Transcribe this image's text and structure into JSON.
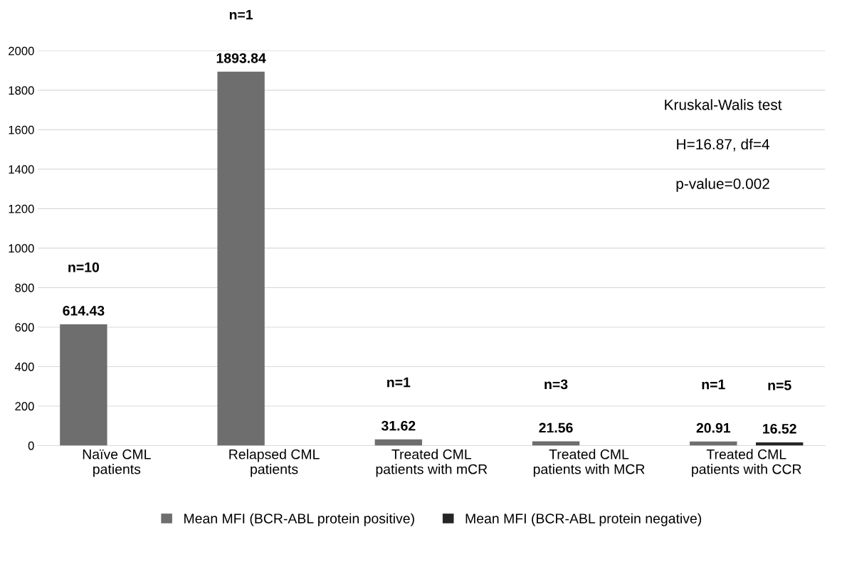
{
  "chart_data": {
    "type": "bar",
    "categories": [
      "Naïve CML\npatients",
      "Relapsed CML\npatients",
      "Treated CML\npatients with mCR",
      "Treated CML\npatients with MCR",
      "Treated CML\npatients with CCR"
    ],
    "series": [
      {
        "name": "Mean MFI (BCR-ABL protein positive)",
        "color": "#6e6e6e",
        "values": [
          614.43,
          1893.84,
          31.62,
          21.56,
          20.91
        ]
      },
      {
        "name": "Mean MFI (BCR-ABL protein negative)",
        "color": "#262626",
        "values": [
          null,
          null,
          null,
          null,
          16.52
        ]
      }
    ],
    "data_labels": true,
    "ylim": [
      0,
      2000
    ],
    "yticks": [
      0,
      200,
      400,
      600,
      800,
      1000,
      1200,
      1400,
      1600,
      1800,
      2000
    ],
    "grid": "y",
    "legend": "bottom",
    "annotations": [
      "Kruskal-Walis test",
      "H=16.87, df=4",
      "p-value=0.002",
      "n=10",
      "n=1",
      "n=1",
      "n=3",
      "n=1",
      "n=5"
    ]
  }
}
